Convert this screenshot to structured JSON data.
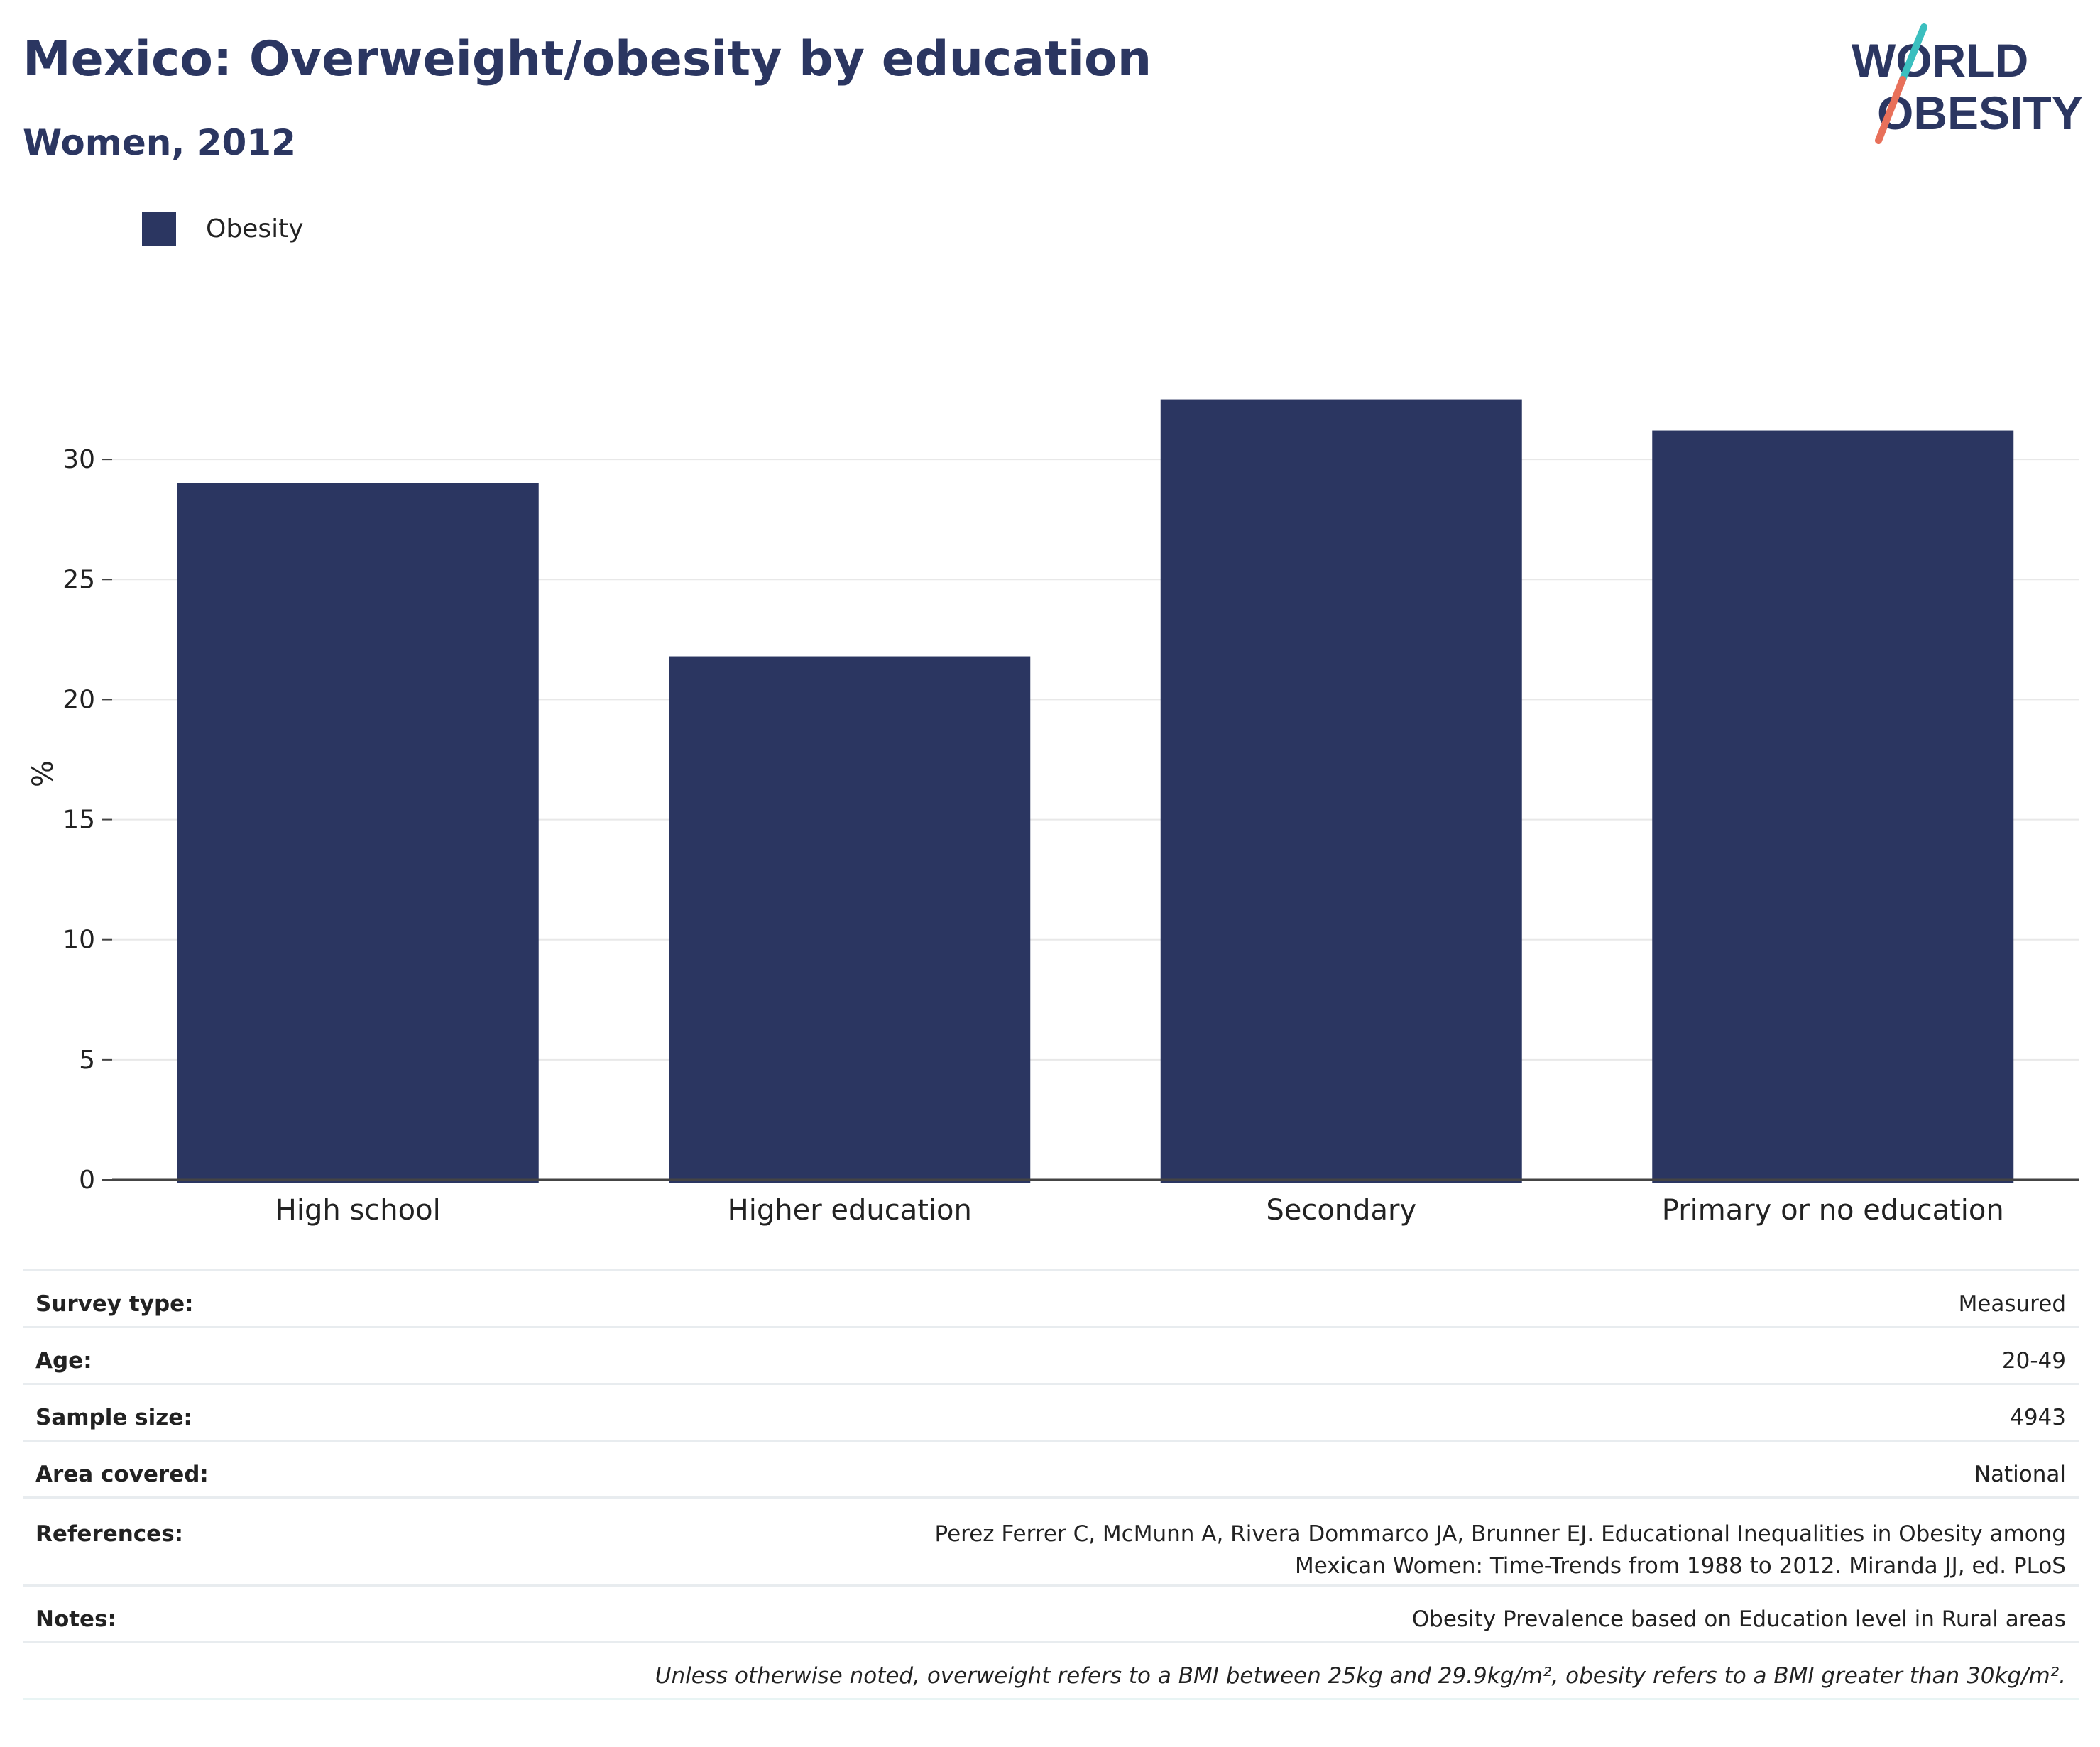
{
  "header": {
    "title": "Mexico: Overweight/obesity by education",
    "subtitle": "Women, 2012"
  },
  "logo": {
    "line1": "WORLD",
    "line2": "OBESITY",
    "colors": {
      "text": "#2b3661",
      "slash_teal": "#3bbfbf",
      "slash_red": "#e8705a"
    }
  },
  "chart_data": {
    "type": "bar",
    "categories": [
      "High school",
      "Higher education",
      "Secondary",
      "Primary or no education"
    ],
    "series": [
      {
        "name": "Obesity",
        "values": [
          29.0,
          21.8,
          32.5,
          31.2
        ],
        "color": "#2b3661"
      }
    ],
    "title": "Mexico: Overweight/obesity by education",
    "subtitle": "Women, 2012",
    "xlabel": "",
    "ylabel": "%",
    "ylim": [
      0,
      35
    ],
    "yticks": [
      0,
      5,
      10,
      15,
      20,
      25,
      30
    ],
    "grid": true,
    "legend": "top-left"
  },
  "info": {
    "rows": [
      {
        "key": "Survey type:",
        "value": "Measured"
      },
      {
        "key": "Age:",
        "value": "20-49"
      },
      {
        "key": "Sample size:",
        "value": "4943"
      },
      {
        "key": "Area covered:",
        "value": "National"
      },
      {
        "key": "References:",
        "value": "Perez Ferrer C, McMunn A, Rivera Dommarco JA, Brunner EJ. Educational Inequalities in Obesity among Mexican Women: Time-Trends from 1988 to 2012. Miranda JJ, ed. PLoS"
      },
      {
        "key": "Notes:",
        "value": "Obesity Prevalence based on Education level in Rural areas"
      }
    ],
    "footnote": "Unless otherwise noted, overweight refers to a BMI between 25kg and 29.9kg/m², obesity refers to a BMI greater than 30kg/m²."
  }
}
